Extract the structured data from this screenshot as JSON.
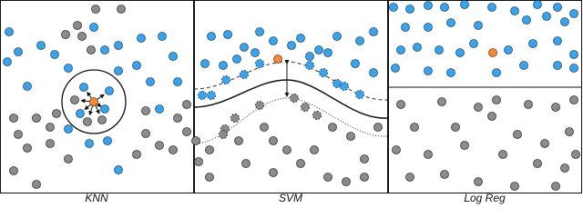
{
  "panels": [
    {
      "label": "KNN"
    },
    {
      "label": "SVM"
    },
    {
      "label": "Log Reg"
    }
  ]
}
